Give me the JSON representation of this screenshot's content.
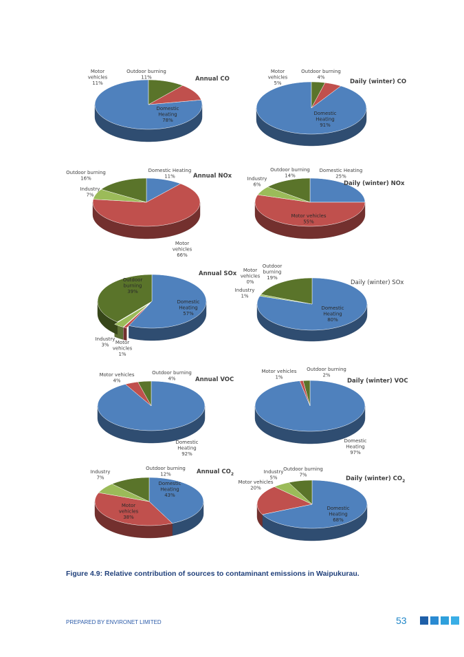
{
  "colors": {
    "domestic_heating": "#4f81bd",
    "motor_vehicles": "#c0504d",
    "industry": "#9bbb59",
    "outdoor_burning": "#5a742a",
    "caption": "#1f3f7a",
    "footer": "#2a5aa8",
    "page_number": "#1f86c8",
    "squares": [
      "#1f5fa8",
      "#2a8ad2",
      "#2fa0dc",
      "#3aaee6"
    ]
  },
  "caption": "Figure 4.9: Relative contribution of sources to contaminant emissions in Waipukurau.",
  "footer": {
    "prepared_by": "PREPARED BY ENVIRONET LIMITED",
    "page_number": "53"
  },
  "chart_data": [
    {
      "type": "pie",
      "title": "Annual CO",
      "slices": [
        {
          "name": "Domestic Heating",
          "value": 78,
          "label_lines": [
            "Domestic",
            "Heating",
            "78%"
          ]
        },
        {
          "name": "Motor vehicles",
          "value": 11,
          "label_lines": [
            "Motor",
            "vehicles",
            "11%"
          ]
        },
        {
          "name": "Outdoor burning",
          "value": 11,
          "label_lines": [
            "Outdoor burning",
            "11%"
          ]
        }
      ]
    },
    {
      "type": "pie",
      "title": "Daily (winter) CO",
      "slices": [
        {
          "name": "Domestic Heating",
          "value": 91,
          "label_lines": [
            "Domestic",
            "Heating",
            "91%"
          ]
        },
        {
          "name": "Motor vehicles",
          "value": 5,
          "label_lines": [
            "Motor",
            "vehicles",
            "5%"
          ]
        },
        {
          "name": "Outdoor burning",
          "value": 4,
          "label_lines": [
            "Outdoor burning",
            "4%"
          ]
        }
      ]
    },
    {
      "type": "pie",
      "title": "Annual NOx",
      "slices": [
        {
          "name": "Domestic Heating",
          "value": 11,
          "label_lines": [
            "Domestic Heating",
            "11%"
          ]
        },
        {
          "name": "Motor vehicles",
          "value": 66,
          "label_lines": [
            "Motor",
            "vehicles",
            "66%"
          ]
        },
        {
          "name": "Industry",
          "value": 7,
          "label_lines": [
            "Industry",
            "7%"
          ]
        },
        {
          "name": "Outdoor burning",
          "value": 16,
          "label_lines": [
            "Outdoor burning",
            "16%"
          ]
        }
      ]
    },
    {
      "type": "pie",
      "title": "Daily (winter) NOx",
      "slices": [
        {
          "name": "Domestic Heating",
          "value": 25,
          "label_lines": [
            "Domestic Heating",
            "25%"
          ]
        },
        {
          "name": "Motor vehicles",
          "value": 55,
          "label_lines": [
            "Motor vehicles",
            "55%"
          ]
        },
        {
          "name": "Industry",
          "value": 6,
          "label_lines": [
            "Industry",
            "6%"
          ]
        },
        {
          "name": "Outdoor burning",
          "value": 14,
          "label_lines": [
            "Outdoor burning",
            "14%"
          ]
        }
      ]
    },
    {
      "type": "pie",
      "title": "Annual SOx",
      "slices": [
        {
          "name": "Domestic Heating",
          "value": 57,
          "label_lines": [
            "Domestic",
            "Heating",
            "57%"
          ]
        },
        {
          "name": "Motor vehicles",
          "value": 1,
          "label_lines": [
            "Motor",
            "vehicles",
            "1%"
          ]
        },
        {
          "name": "Industry",
          "value": 3,
          "label_lines": [
            "Industry",
            "3%"
          ]
        },
        {
          "name": "Outdoor burning",
          "value": 39,
          "label_lines": [
            "Outdoor",
            "burning",
            "39%"
          ]
        }
      ]
    },
    {
      "type": "pie",
      "title": "Daily (winter) SOx",
      "slices": [
        {
          "name": "Domestic Heating",
          "value": 80,
          "label_lines": [
            "Domestic",
            "Heating",
            "80%"
          ]
        },
        {
          "name": "Motor vehicles",
          "value": 0,
          "label_lines": [
            "Motor",
            "vehicles",
            "0%"
          ]
        },
        {
          "name": "Industry",
          "value": 1,
          "label_lines": [
            "Industry",
            "1%"
          ]
        },
        {
          "name": "Outdoor burning",
          "value": 19,
          "label_lines": [
            "Outdoor",
            "burning",
            "19%"
          ]
        }
      ]
    },
    {
      "type": "pie",
      "title": "Annual VOC",
      "slices": [
        {
          "name": "Domestic Heating",
          "value": 92,
          "label_lines": [
            "Domestic",
            "Heating",
            "92%"
          ]
        },
        {
          "name": "Motor vehicles",
          "value": 4,
          "label_lines": [
            "Motor vehicles",
            "4%"
          ]
        },
        {
          "name": "Outdoor burning",
          "value": 4,
          "label_lines": [
            "Outdoor burning",
            "4%"
          ]
        }
      ]
    },
    {
      "type": "pie",
      "title": "Daily (winter) VOC",
      "slices": [
        {
          "name": "Domestic Heating",
          "value": 97,
          "label_lines": [
            "Domestic",
            "Heating",
            "97%"
          ]
        },
        {
          "name": "Motor vehicles",
          "value": 1,
          "label_lines": [
            "Motor vehicles",
            "1%"
          ]
        },
        {
          "name": "Outdoor burning",
          "value": 2,
          "label_lines": [
            "Outdoor burning",
            "2%"
          ]
        }
      ]
    },
    {
      "type": "pie",
      "title": "Annual CO2",
      "title_base": "Annual CO",
      "title_sub": "2",
      "slices": [
        {
          "name": "Domestic Heating",
          "value": 43,
          "label_lines": [
            "Domestic",
            "Heating",
            "43%"
          ]
        },
        {
          "name": "Motor vehicles",
          "value": 38,
          "label_lines": [
            "Motor",
            "vehicles",
            "38%"
          ]
        },
        {
          "name": "Industry",
          "value": 7,
          "label_lines": [
            "Industry",
            "7%"
          ]
        },
        {
          "name": "Outdoor burning",
          "value": 12,
          "label_lines": [
            "Outdoor burning",
            "12%"
          ]
        }
      ]
    },
    {
      "type": "pie",
      "title": "Daily (winter) CO2",
      "title_base": "Daily (winter) CO",
      "title_sub": "2",
      "slices": [
        {
          "name": "Domestic Heating",
          "value": 68,
          "label_lines": [
            "Domestic",
            "Heating",
            "68%"
          ]
        },
        {
          "name": "Motor vehicles",
          "value": 20,
          "label_lines": [
            "Motor vehicles",
            "20%"
          ]
        },
        {
          "name": "Industry",
          "value": 5,
          "label_lines": [
            "Industry",
            "5%"
          ]
        },
        {
          "name": "Outdoor burning",
          "value": 7,
          "label_lines": [
            "Outdoor burning",
            "7%"
          ]
        }
      ]
    }
  ]
}
